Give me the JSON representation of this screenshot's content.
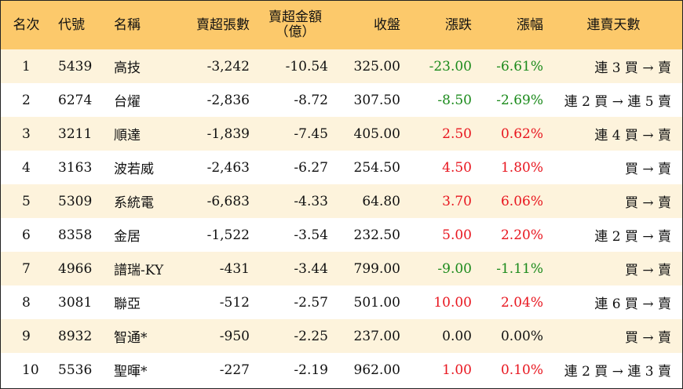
{
  "headers": {
    "rank": "名次",
    "code": "代號",
    "name": "名稱",
    "net_sell_volume": "賣超張數",
    "net_sell_amount_line1": "賣超金額",
    "net_sell_amount_line2": "（億）",
    "close": "收盤",
    "change": "漲跌",
    "change_pct": "漲幅",
    "streak": "連賣天數"
  },
  "colors": {
    "header_bg": "#fcc96b",
    "band_bg": "#fdf3dc",
    "up": "#e8161f",
    "down": "#1b8a1b"
  },
  "rows": [
    {
      "rank": "1",
      "code": "5439",
      "name": "高技",
      "volume": "-3,242",
      "amount": "-10.54",
      "close": "325.00",
      "change": "-23.00",
      "pct": "-6.61%",
      "direction": "down",
      "streak": "連 3 買 → 賣"
    },
    {
      "rank": "2",
      "code": "6274",
      "name": "台燿",
      "volume": "-2,836",
      "amount": "-8.72",
      "close": "307.50",
      "change": "-8.50",
      "pct": "-2.69%",
      "direction": "down",
      "streak": "連 2 買 → 連 5 賣"
    },
    {
      "rank": "3",
      "code": "3211",
      "name": "順達",
      "volume": "-1,839",
      "amount": "-7.45",
      "close": "405.00",
      "change": "2.50",
      "pct": "0.62%",
      "direction": "up",
      "streak": "連 4 買 → 賣"
    },
    {
      "rank": "4",
      "code": "3163",
      "name": "波若威",
      "volume": "-2,463",
      "amount": "-6.27",
      "close": "254.50",
      "change": "4.50",
      "pct": "1.80%",
      "direction": "up",
      "streak": "買 → 賣"
    },
    {
      "rank": "5",
      "code": "5309",
      "name": "系統電",
      "volume": "-6,683",
      "amount": "-4.33",
      "close": "64.80",
      "change": "3.70",
      "pct": "6.06%",
      "direction": "up",
      "streak": "買 → 賣"
    },
    {
      "rank": "6",
      "code": "8358",
      "name": "金居",
      "volume": "-1,522",
      "amount": "-3.54",
      "close": "232.50",
      "change": "5.00",
      "pct": "2.20%",
      "direction": "up",
      "streak": "連 2 買 → 賣"
    },
    {
      "rank": "7",
      "code": "4966",
      "name": "譜瑞-KY",
      "volume": "-431",
      "amount": "-3.44",
      "close": "799.00",
      "change": "-9.00",
      "pct": "-1.11%",
      "direction": "down",
      "streak": "買 → 賣"
    },
    {
      "rank": "8",
      "code": "3081",
      "name": "聯亞",
      "volume": "-512",
      "amount": "-2.57",
      "close": "501.00",
      "change": "10.00",
      "pct": "2.04%",
      "direction": "up",
      "streak": "連 6 買 → 賣"
    },
    {
      "rank": "9",
      "code": "8932",
      "name": "智通*",
      "volume": "-950",
      "amount": "-2.25",
      "close": "237.00",
      "change": "0.00",
      "pct": "0.00%",
      "direction": "flat",
      "streak": "買 → 賣"
    },
    {
      "rank": "10",
      "code": "5536",
      "name": "聖暉*",
      "volume": "-227",
      "amount": "-2.19",
      "close": "962.00",
      "change": "1.00",
      "pct": "0.10%",
      "direction": "up",
      "streak": "連 2 買 → 連 3 賣"
    }
  ]
}
